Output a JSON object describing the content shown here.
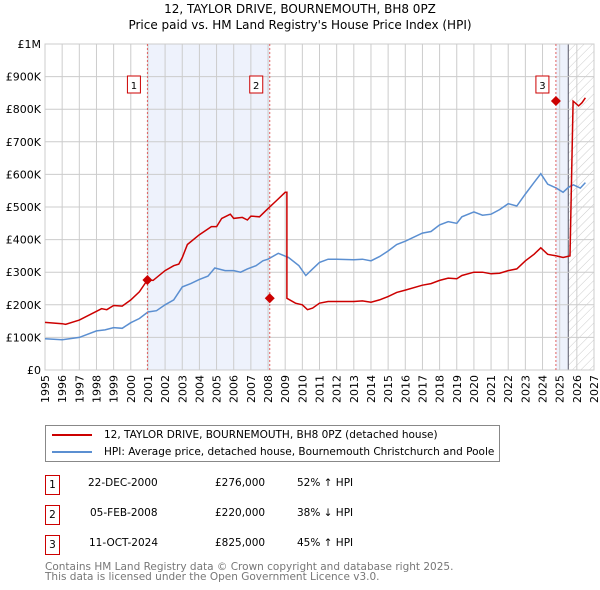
{
  "title": "12, TAYLOR DRIVE, BOURNEMOUTH, BH8 0PZ",
  "subtitle": "Price paid vs. HM Land Registry's House Price Index (HPI)",
  "colors": {
    "price": "#cc0000",
    "hpi": "#5b8fd1",
    "shade": "#eef2fc"
  },
  "chart_data": {
    "type": "line",
    "xlim": [
      1995,
      2027
    ],
    "ylim": [
      0,
      1000000
    ],
    "y_ticks": [
      {
        "v": 0,
        "label": "£0"
      },
      {
        "v": 100000,
        "label": "£100K"
      },
      {
        "v": 200000,
        "label": "£200K"
      },
      {
        "v": 300000,
        "label": "£300K"
      },
      {
        "v": 400000,
        "label": "£400K"
      },
      {
        "v": 500000,
        "label": "£500K"
      },
      {
        "v": 600000,
        "label": "£600K"
      },
      {
        "v": 700000,
        "label": "£700K"
      },
      {
        "v": 800000,
        "label": "£800K"
      },
      {
        "v": 900000,
        "label": "£900K"
      },
      {
        "v": 1000000,
        "label": "£1M"
      }
    ],
    "x_ticks": [
      "1995",
      "1996",
      "1997",
      "1998",
      "1999",
      "2000",
      "2001",
      "2002",
      "2003",
      "2004",
      "2005",
      "2006",
      "2007",
      "2008",
      "2009",
      "2010",
      "2011",
      "2012",
      "2013",
      "2014",
      "2015",
      "2016",
      "2017",
      "2018",
      "2019",
      "2020",
      "2021",
      "2022",
      "2023",
      "2024",
      "2025",
      "2026",
      "2027"
    ],
    "series": [
      {
        "name": "12, TAYLOR DRIVE, BOURNEMOUTH, BH8 0PZ (detached house)",
        "points": [
          [
            1995,
            146000
          ],
          [
            1996,
            142000
          ],
          [
            1996.2,
            140000
          ],
          [
            1997,
            153000
          ],
          [
            1998,
            180000
          ],
          [
            1998.3,
            188000
          ],
          [
            1998.6,
            185000
          ],
          [
            1999,
            198000
          ],
          [
            1999.5,
            196000
          ],
          [
            2000,
            215000
          ],
          [
            2000.5,
            240000
          ],
          [
            2000.97,
            276000
          ],
          [
            2001.3,
            275000
          ],
          [
            2002,
            305000
          ],
          [
            2002.5,
            320000
          ],
          [
            2002.8,
            325000
          ],
          [
            2003,
            345000
          ],
          [
            2003.3,
            385000
          ],
          [
            2004,
            415000
          ],
          [
            2004.7,
            440000
          ],
          [
            2005,
            440000
          ],
          [
            2005.3,
            465000
          ],
          [
            2005.8,
            478000
          ],
          [
            2006,
            465000
          ],
          [
            2006.5,
            468000
          ],
          [
            2006.8,
            460000
          ],
          [
            2007,
            472000
          ],
          [
            2007.5,
            470000
          ],
          [
            2008,
            495000
          ],
          [
            2008.5,
            520000
          ],
          [
            2009,
            545000
          ],
          [
            2009.1,
            545000
          ],
          [
            2008.1,
            545000
          ]
        ],
        "note": "see segments"
      },
      {
        "name": "HPI: Average price, detached house, Bournemouth Christchurch and Poole",
        "points": [
          [
            1995,
            96000
          ],
          [
            1996,
            93000
          ],
          [
            1997,
            100000
          ],
          [
            1998,
            120000
          ],
          [
            1998.5,
            123000
          ],
          [
            1999,
            130000
          ],
          [
            1999.5,
            128000
          ],
          [
            2000,
            145000
          ],
          [
            2000.5,
            158000
          ],
          [
            2001,
            178000
          ],
          [
            2001.5,
            182000
          ],
          [
            2002,
            200000
          ],
          [
            2002.5,
            215000
          ],
          [
            2003,
            255000
          ],
          [
            2003.5,
            265000
          ],
          [
            2004,
            278000
          ],
          [
            2004.5,
            288000
          ],
          [
            2004.9,
            313000
          ],
          [
            2005.5,
            305000
          ],
          [
            2006,
            305000
          ],
          [
            2006.4,
            300000
          ],
          [
            2006.8,
            310000
          ],
          [
            2007.3,
            320000
          ],
          [
            2007.7,
            335000
          ],
          [
            2008,
            340000
          ],
          [
            2008.6,
            358000
          ],
          [
            2009.2,
            345000
          ],
          [
            2009.8,
            320000
          ],
          [
            2010.2,
            290000
          ],
          [
            2010.6,
            310000
          ],
          [
            2011,
            330000
          ],
          [
            2011.5,
            340000
          ],
          [
            2012,
            340000
          ],
          [
            2013,
            338000
          ],
          [
            2013.5,
            340000
          ],
          [
            2014,
            335000
          ],
          [
            2014.5,
            348000
          ],
          [
            2015,
            365000
          ],
          [
            2015.5,
            385000
          ],
          [
            2016,
            395000
          ],
          [
            2017,
            420000
          ],
          [
            2017.5,
            425000
          ],
          [
            2018,
            445000
          ],
          [
            2018.5,
            455000
          ],
          [
            2019,
            450000
          ],
          [
            2019.3,
            470000
          ],
          [
            2020,
            485000
          ],
          [
            2020.5,
            475000
          ],
          [
            2021,
            478000
          ],
          [
            2021.5,
            492000
          ],
          [
            2022,
            510000
          ],
          [
            2022.5,
            503000
          ],
          [
            2023,
            540000
          ],
          [
            2023.5,
            575000
          ],
          [
            2023.9,
            602000
          ],
          [
            2024.3,
            570000
          ],
          [
            2024.8,
            558000
          ],
          [
            2025.2,
            545000
          ],
          [
            2025.5,
            560000
          ],
          [
            2025.8,
            568000
          ],
          [
            2026.2,
            558000
          ],
          [
            2026.5,
            575000
          ]
        ]
      }
    ],
    "price_series": [
      [
        1995,
        146000
      ],
      [
        1996,
        142000
      ],
      [
        1996.2,
        140000
      ],
      [
        1997,
        153000
      ],
      [
        1998,
        180000
      ],
      [
        1998.3,
        188000
      ],
      [
        1998.6,
        185000
      ],
      [
        1999,
        198000
      ],
      [
        1999.5,
        196000
      ],
      [
        2000,
        215000
      ],
      [
        2000.5,
        240000
      ],
      [
        2000.97,
        276000
      ],
      [
        2001.3,
        275000
      ],
      [
        2002,
        305000
      ],
      [
        2002.5,
        320000
      ],
      [
        2002.8,
        325000
      ],
      [
        2003,
        345000
      ],
      [
        2003.3,
        385000
      ],
      [
        2004,
        415000
      ],
      [
        2004.7,
        440000
      ],
      [
        2005,
        440000
      ],
      [
        2005.3,
        465000
      ],
      [
        2005.8,
        478000
      ],
      [
        2006,
        465000
      ],
      [
        2006.5,
        468000
      ],
      [
        2006.8,
        460000
      ],
      [
        2007,
        472000
      ],
      [
        2007.5,
        470000
      ],
      [
        2008,
        495000
      ],
      [
        2008.5,
        520000
      ],
      [
        2009,
        545000
      ],
      [
        2009.1,
        545000
      ],
      [
        2009.1,
        220000
      ],
      [
        2009.6,
        205000
      ],
      [
        2010,
        200000
      ],
      [
        2010.3,
        185000
      ],
      [
        2010.6,
        190000
      ],
      [
        2011,
        205000
      ],
      [
        2011.5,
        210000
      ],
      [
        2012,
        210000
      ],
      [
        2013,
        210000
      ],
      [
        2013.5,
        212000
      ],
      [
        2014,
        208000
      ],
      [
        2014.5,
        215000
      ],
      [
        2015,
        225000
      ],
      [
        2015.5,
        238000
      ],
      [
        2016,
        245000
      ],
      [
        2017,
        260000
      ],
      [
        2017.5,
        265000
      ],
      [
        2018,
        275000
      ],
      [
        2018.5,
        282000
      ],
      [
        2019,
        280000
      ],
      [
        2019.3,
        290000
      ],
      [
        2020,
        300000
      ],
      [
        2020.5,
        300000
      ],
      [
        2021,
        295000
      ],
      [
        2021.5,
        297000
      ],
      [
        2022,
        305000
      ],
      [
        2022.5,
        310000
      ],
      [
        2023,
        335000
      ],
      [
        2023.5,
        355000
      ],
      [
        2023.9,
        375000
      ],
      [
        2024.3,
        355000
      ],
      [
        2024.8,
        350000
      ],
      [
        2025.2,
        345000
      ],
      [
        2025.6,
        350000
      ],
      [
        2025.78,
        825000
      ],
      [
        2026.1,
        810000
      ],
      [
        2026.3,
        820000
      ],
      [
        2026.5,
        835000
      ]
    ],
    "sales": [
      {
        "label": "1",
        "x": 2000.97,
        "y": 276000
      },
      {
        "label": "2",
        "x": 2008.1,
        "y": 220000
      },
      {
        "label": "3",
        "x": 2024.78,
        "y": 825000
      }
    ],
    "shaded_ranges": [
      [
        2000.97,
        2008.1
      ],
      [
        2024.78,
        2025.5
      ]
    ],
    "hatched_from": 2025.5,
    "legend_position": "below"
  },
  "legend": [
    "12, TAYLOR DRIVE, BOURNEMOUTH, BH8 0PZ (detached house)",
    "HPI: Average price, detached house, Bournemouth Christchurch and Poole"
  ],
  "sales_table": [
    {
      "num": "1",
      "date": "22-DEC-2000",
      "price": "£276,000",
      "hpi": "52% ↑ HPI"
    },
    {
      "num": "2",
      "date": "05-FEB-2008",
      "price": "£220,000",
      "hpi": "38% ↓ HPI"
    },
    {
      "num": "3",
      "date": "11-OCT-2024",
      "price": "£825,000",
      "hpi": "45% ↑ HPI"
    }
  ],
  "footer": [
    "Contains HM Land Registry data © Crown copyright and database right 2025.",
    "This data is licensed under the Open Government Licence v3.0."
  ]
}
